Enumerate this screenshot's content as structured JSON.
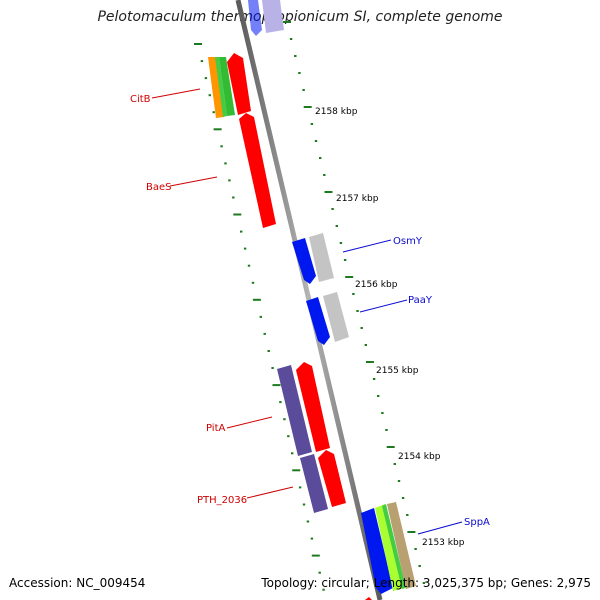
{
  "title": "Pelotomaculum thermopropionicum SI, complete genome",
  "footer": {
    "accession": "Accession: NC_009454",
    "summary": "Topology: circular; Length: 3,025,375 bp; Genes: 2,975"
  },
  "colors": {
    "backbone": "#8c8c8c",
    "tick": "#1e7a1e",
    "forward_label": "#0a0ad0",
    "reverse_label": "#d00000",
    "gene_red": "#ff0000",
    "gene_blue": "#0018f0",
    "gene_grey": "#c4c4c4",
    "gene_purple": "#5a4c9a",
    "gene_orange": "#ff9500",
    "gene_green": "#44cc44",
    "gene_lime": "#aaff33",
    "gene_tan": "#b8a070",
    "gene_lavender": "#b8b2e6"
  },
  "scale_labels": [
    "2158 kbp",
    "2157 kbp",
    "2156 kbp",
    "2155 kbp",
    "2154 kbp",
    "2153 kbp"
  ],
  "gene_labels": {
    "citb": "CitB",
    "baes": "BaeS",
    "osmy": "OsmY",
    "paay": "PaaY",
    "pita": "PitA",
    "pth": "PTH_2036",
    "sppa": "SppA"
  }
}
